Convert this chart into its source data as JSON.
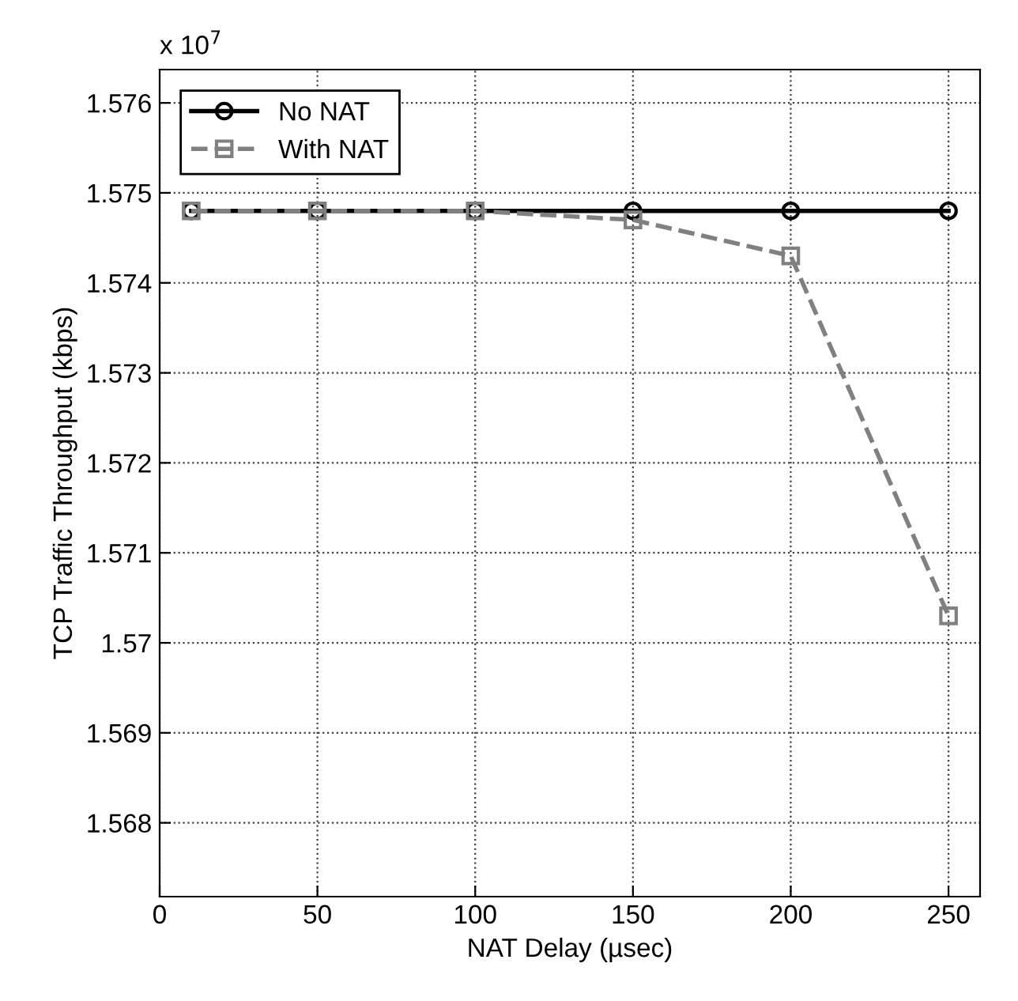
{
  "chart_data": {
    "type": "line",
    "xlabel": "NAT Delay (µsec)",
    "ylabel": "TCP Traffic Throughput (kbps)",
    "annotations": [
      "x 10$^{7}$"
    ],
    "x": [
      10,
      50,
      100,
      150,
      200,
      250
    ],
    "series": [
      {
        "name": "No NAT",
        "color": "#000000",
        "marker": "circle",
        "line_style": "solid",
        "values": [
          1.5748,
          1.5748,
          1.5748,
          1.5748,
          1.5748,
          1.5748
        ]
      },
      {
        "name": "With NAT",
        "color": "#808080",
        "marker": "square",
        "line_style": "dashed",
        "values": [
          1.5748,
          1.5748,
          1.5748,
          1.5747,
          1.5743,
          1.5703
        ]
      }
    ],
    "xlim": [
      0,
      260
    ],
    "xticks": [
      0,
      50,
      100,
      150,
      200,
      250
    ],
    "ylim": [
      1.56718,
      1.57637
    ],
    "yticks": [
      {
        "value": 1.568,
        "label": "1.568"
      },
      {
        "value": 1.569,
        "label": "1.569"
      },
      {
        "value": 1.57,
        "label": "1.57"
      },
      {
        "value": 1.571,
        "label": "1.571"
      },
      {
        "value": 1.572,
        "label": "1.572"
      },
      {
        "value": 1.573,
        "label": "1.573"
      },
      {
        "value": 1.574,
        "label": "1.574"
      },
      {
        "value": 1.575,
        "label": "1.575"
      },
      {
        "value": 1.576,
        "label": "1.576"
      }
    ],
    "grid": true,
    "legend": "top left"
  }
}
